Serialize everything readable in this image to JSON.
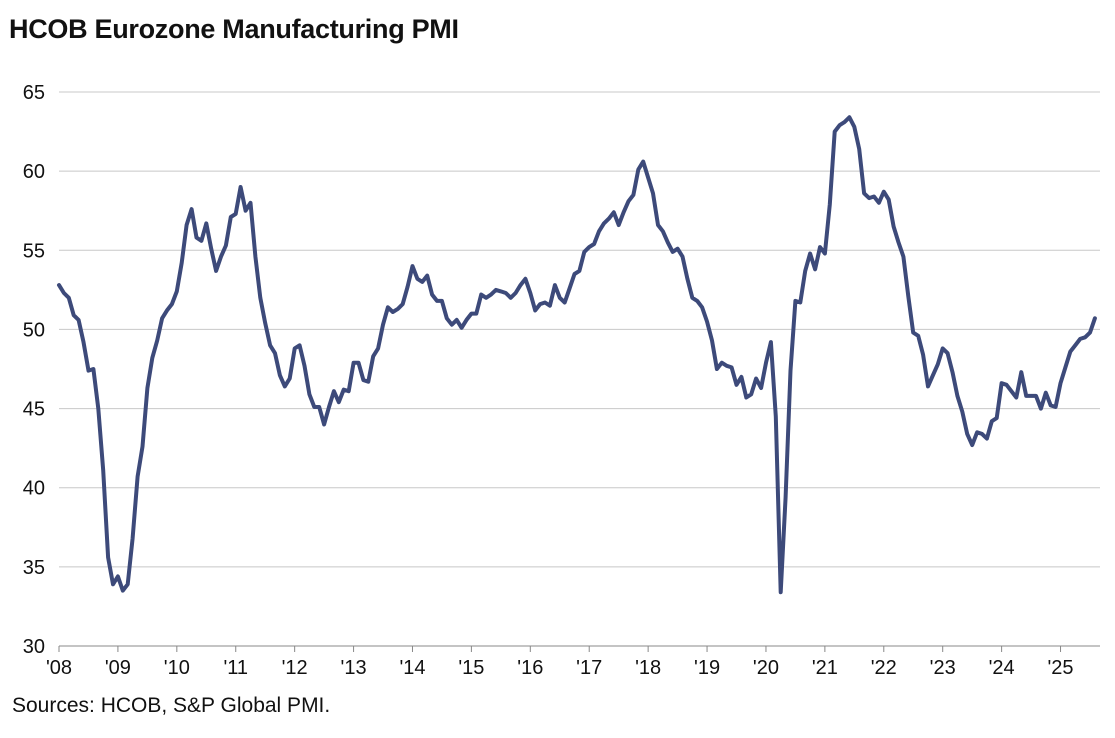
{
  "title": "HCOB Eurozone Manufacturing PMI",
  "source": "Sources: HCOB,  S&P Global  PMI.",
  "colors": {
    "line": "#3d4a7a",
    "grid": "#c8c8c8",
    "axis": "#888888",
    "text": "#111111"
  },
  "chart_data": {
    "type": "line",
    "title": "HCOB Eurozone Manufacturing PMI",
    "xlabel": "",
    "ylabel": "",
    "ylim": [
      30,
      65
    ],
    "yticks": [
      30,
      35,
      40,
      45,
      50,
      55,
      60,
      65
    ],
    "xlim": [
      2008.0,
      2025.67
    ],
    "xticks": [
      {
        "value": 2008,
        "label": "'08"
      },
      {
        "value": 2009,
        "label": "'09"
      },
      {
        "value": 2010,
        "label": "'10"
      },
      {
        "value": 2011,
        "label": "'11"
      },
      {
        "value": 2012,
        "label": "'12"
      },
      {
        "value": 2013,
        "label": "'13"
      },
      {
        "value": 2014,
        "label": "'14"
      },
      {
        "value": 2015,
        "label": "'15"
      },
      {
        "value": 2016,
        "label": "'16"
      },
      {
        "value": 2017,
        "label": "'17"
      },
      {
        "value": 2018,
        "label": "'18"
      },
      {
        "value": 2019,
        "label": "'19"
      },
      {
        "value": 2020,
        "label": "'20"
      },
      {
        "value": 2021,
        "label": "'21"
      },
      {
        "value": 2022,
        "label": "'22"
      },
      {
        "value": 2023,
        "label": "'23"
      },
      {
        "value": 2024,
        "label": "'24"
      },
      {
        "value": 2025,
        "label": "'25"
      }
    ],
    "grid": true,
    "series": [
      {
        "name": "HCOB Eurozone Manufacturing PMI",
        "start": "2008-01",
        "frequency": "monthly",
        "values": [
          52.8,
          52.3,
          52.0,
          50.9,
          50.6,
          49.2,
          47.4,
          47.5,
          45.0,
          41.1,
          35.6,
          33.9,
          34.4,
          33.5,
          33.9,
          36.8,
          40.7,
          42.6,
          46.3,
          48.2,
          49.3,
          50.7,
          51.2,
          51.6,
          52.4,
          54.2,
          56.6,
          57.6,
          55.8,
          55.6,
          56.7,
          55.1,
          53.7,
          54.6,
          55.3,
          57.1,
          57.3,
          59.0,
          57.5,
          58.0,
          54.6,
          52.0,
          50.4,
          49.0,
          48.5,
          47.1,
          46.4,
          46.9,
          48.8,
          49.0,
          47.7,
          45.9,
          45.1,
          45.1,
          44.0,
          45.1,
          46.1,
          45.4,
          46.2,
          46.1,
          47.9,
          47.9,
          46.8,
          46.7,
          48.3,
          48.8,
          50.3,
          51.4,
          51.1,
          51.3,
          51.6,
          52.7,
          54.0,
          53.2,
          53.0,
          53.4,
          52.2,
          51.8,
          51.8,
          50.7,
          50.3,
          50.6,
          50.1,
          50.6,
          51.0,
          51.0,
          52.2,
          52.0,
          52.2,
          52.5,
          52.4,
          52.3,
          52.0,
          52.3,
          52.8,
          53.2,
          52.3,
          51.2,
          51.6,
          51.7,
          51.5,
          52.8,
          52.0,
          51.7,
          52.6,
          53.5,
          53.7,
          54.9,
          55.2,
          55.4,
          56.2,
          56.7,
          57.0,
          57.4,
          56.6,
          57.4,
          58.1,
          58.5,
          60.1,
          60.6,
          59.6,
          58.6,
          56.6,
          56.2,
          55.5,
          54.9,
          55.1,
          54.6,
          53.2,
          52.0,
          51.8,
          51.4,
          50.5,
          49.3,
          47.5,
          47.9,
          47.7,
          47.6,
          46.5,
          47.0,
          45.7,
          45.9,
          46.9,
          46.3,
          47.9,
          49.2,
          44.5,
          33.4,
          39.4,
          47.4,
          51.8,
          51.7,
          53.7,
          54.8,
          53.8,
          55.2,
          54.8,
          57.9,
          62.5,
          62.9,
          63.1,
          63.4,
          62.8,
          61.4,
          58.6,
          58.3,
          58.4,
          58.0,
          58.7,
          58.2,
          56.5,
          55.5,
          54.6,
          52.1,
          49.8,
          49.6,
          48.4,
          46.4,
          47.1,
          47.8,
          48.8,
          48.5,
          47.3,
          45.8,
          44.8,
          43.4,
          42.7,
          43.5,
          43.4,
          43.1,
          44.2,
          44.4,
          46.6,
          46.5,
          46.1,
          45.7,
          47.3,
          45.8,
          45.8,
          45.8,
          45.0,
          46.0,
          45.2,
          45.1,
          46.6,
          47.6,
          48.6,
          49.0,
          49.4,
          49.5,
          49.8,
          50.7
        ]
      }
    ]
  }
}
